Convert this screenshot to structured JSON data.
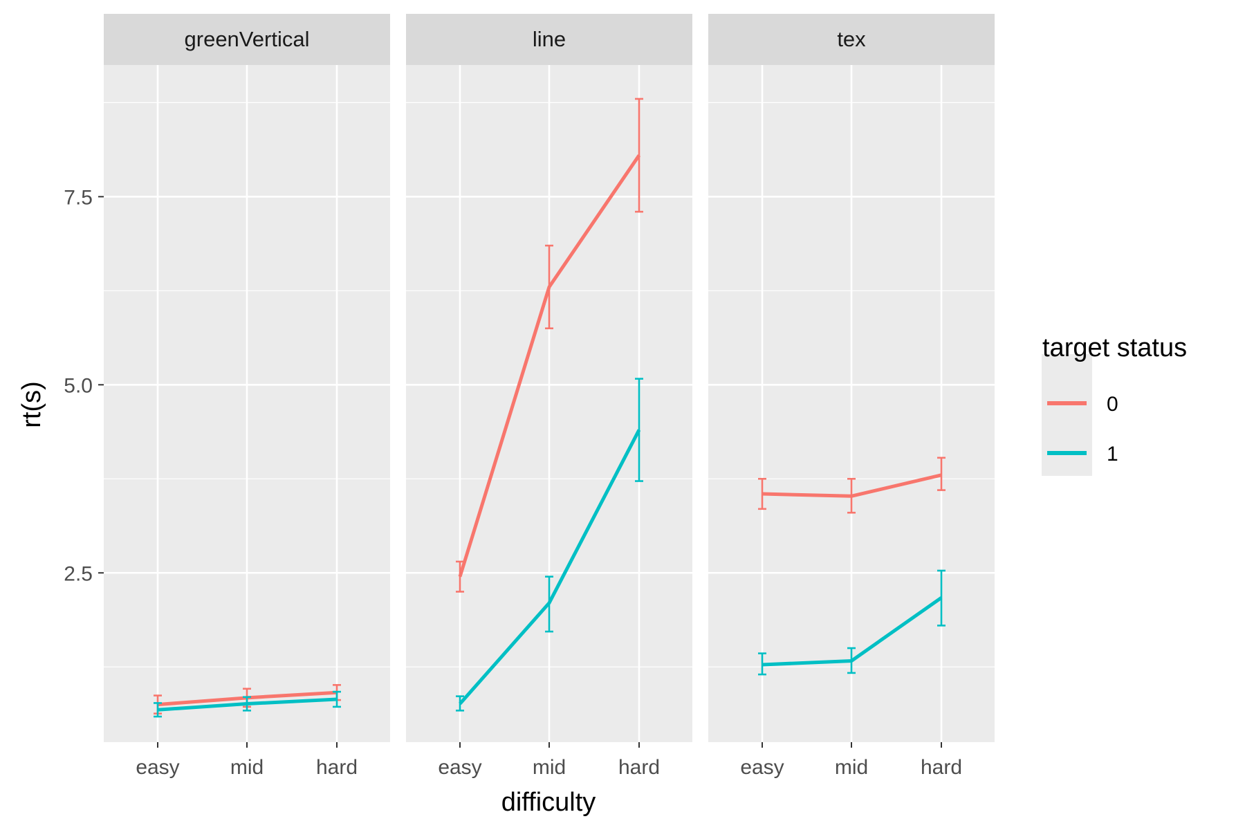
{
  "chart_data": {
    "type": "line",
    "xlabel": "difficulty",
    "ylabel": "rt(s)",
    "categories": [
      "easy",
      "mid",
      "hard"
    ],
    "ylim": [
      0.25,
      9.25
    ],
    "yticks": [
      2.5,
      5.0,
      7.5
    ],
    "ytick_labels": [
      "2.5",
      "5.0",
      "7.5"
    ],
    "grid": true,
    "legend": {
      "title": "target status",
      "position": "right",
      "entries": [
        {
          "label": "0",
          "color": "#F8766D"
        },
        {
          "label": "1",
          "color": "#00BFC4"
        }
      ]
    },
    "panels": [
      {
        "title": "greenVertical",
        "series": [
          {
            "name": "0",
            "color": "#F8766D",
            "values": [
              0.75,
              0.84,
              0.91
            ],
            "err_low": [
              0.63,
              0.72,
              0.81
            ],
            "err_high": [
              0.87,
              0.96,
              1.01
            ]
          },
          {
            "name": "1",
            "color": "#00BFC4",
            "values": [
              0.68,
              0.76,
              0.82
            ],
            "err_low": [
              0.59,
              0.67,
              0.72
            ],
            "err_high": [
              0.77,
              0.85,
              0.92
            ]
          }
        ]
      },
      {
        "title": "line",
        "series": [
          {
            "name": "0",
            "color": "#F8766D",
            "values": [
              2.45,
              6.3,
              8.05
            ],
            "err_low": [
              2.25,
              5.75,
              7.3
            ],
            "err_high": [
              2.65,
              6.85,
              8.8
            ]
          },
          {
            "name": "1",
            "color": "#00BFC4",
            "values": [
              0.76,
              2.1,
              4.4
            ],
            "err_low": [
              0.67,
              1.72,
              3.72
            ],
            "err_high": [
              0.86,
              2.45,
              5.08
            ]
          }
        ]
      },
      {
        "title": "tex",
        "series": [
          {
            "name": "0",
            "color": "#F8766D",
            "values": [
              3.55,
              3.52,
              3.8
            ],
            "err_low": [
              3.35,
              3.3,
              3.6
            ],
            "err_high": [
              3.75,
              3.75,
              4.03
            ]
          },
          {
            "name": "1",
            "color": "#00BFC4",
            "values": [
              1.28,
              1.33,
              2.17
            ],
            "err_low": [
              1.15,
              1.17,
              1.8
            ],
            "err_high": [
              1.43,
              1.5,
              2.53
            ]
          }
        ]
      }
    ]
  }
}
